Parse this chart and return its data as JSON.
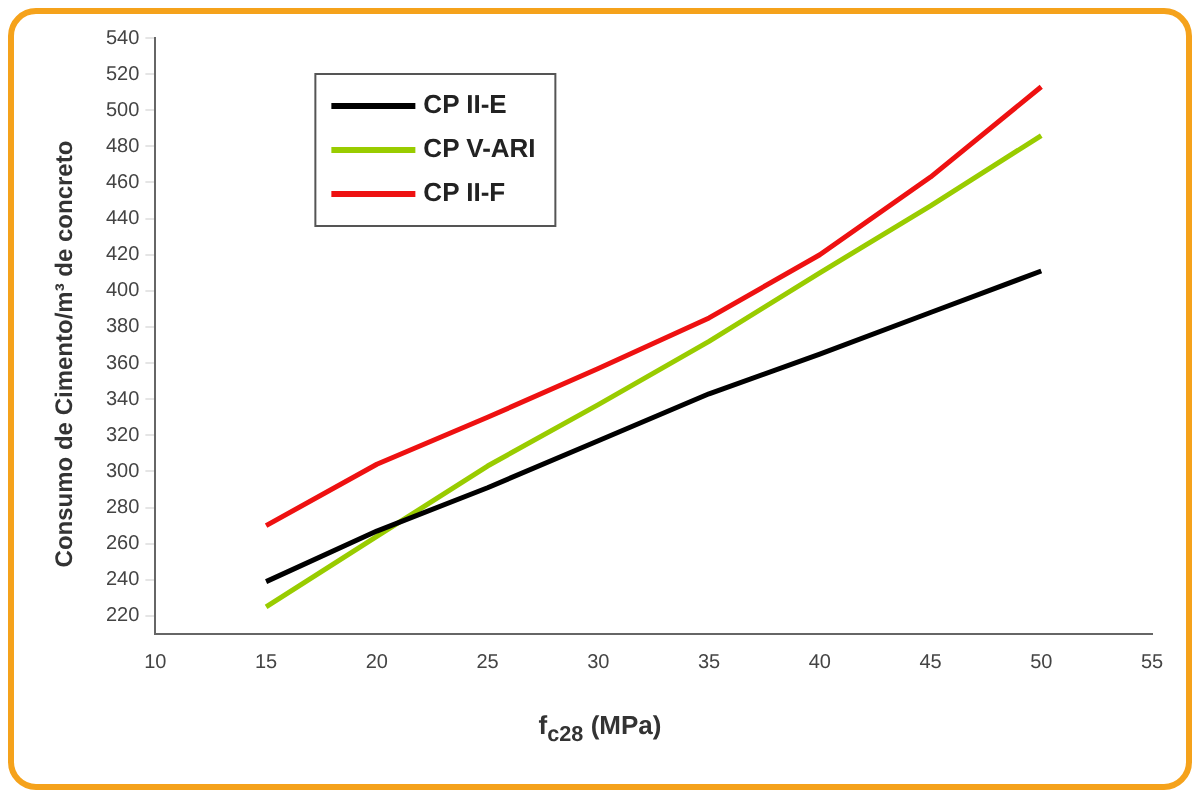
{
  "chart_data": {
    "type": "line",
    "xlabel": "f$_{c28}$ (MPa)",
    "ylabel": "Consumo de Cimento/m³ de concreto",
    "x": [
      15,
      20,
      25,
      30,
      35,
      40,
      45,
      50
    ],
    "series": [
      {
        "name": "CP II-E",
        "color": "#000000",
        "values": [
          239,
          267,
          291,
          317,
          343,
          365,
          388,
          411
        ]
      },
      {
        "name": "CP V-ARI",
        "color": "#99cc00",
        "values": [
          225,
          264,
          303,
          337,
          372,
          410,
          447,
          486
        ]
      },
      {
        "name": "CP II-F",
        "color": "#ee1111",
        "values": [
          270,
          304,
          330,
          357,
          385,
          420,
          463,
          513
        ]
      }
    ],
    "xlim": [
      10,
      55
    ],
    "xticks": [
      10,
      15,
      20,
      25,
      30,
      35,
      40,
      45,
      50,
      55
    ],
    "ylim": [
      210,
      540
    ],
    "yticks": [
      220,
      240,
      260,
      280,
      300,
      320,
      340,
      360,
      380,
      400,
      420,
      440,
      460,
      480,
      500,
      520,
      540
    ],
    "grid": false,
    "legend": "top left",
    "marker": "none",
    "line_style": "solid"
  }
}
